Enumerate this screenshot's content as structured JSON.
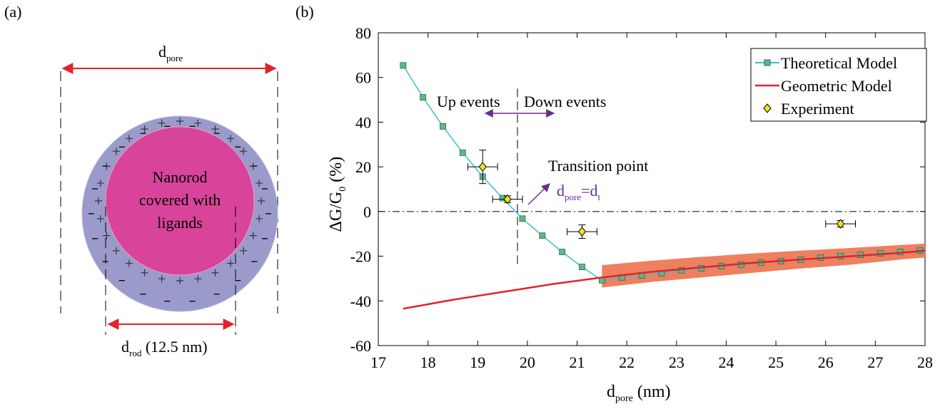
{
  "panel_a": {
    "label": "(a)",
    "pore_label": [
      "d",
      "pore"
    ],
    "rod_text": [
      "Nanorod",
      "covered with",
      "ligands"
    ],
    "rod_label": [
      "d",
      "rod",
      " (12.5 nm)"
    ]
  },
  "chart_data": {
    "type": "line",
    "panel_label": "(b)",
    "x_label": [
      "d",
      "pore",
      " (nm)"
    ],
    "y_label": [
      "ΔG/G",
      "0",
      " (%)"
    ],
    "xlim": [
      17,
      28
    ],
    "xticks": [
      17,
      18,
      19,
      20,
      21,
      22,
      23,
      24,
      25,
      26,
      27,
      28
    ],
    "ylim": [
      -60,
      80
    ],
    "yticks": [
      -60,
      -40,
      -20,
      0,
      20,
      40,
      60,
      80
    ],
    "legend": "upper right",
    "series": [
      {
        "name": "Theoretical Model",
        "color": "#3cbfd0",
        "marker_color": "#5cb88a",
        "x": [
          17.5,
          17.9,
          18.3,
          18.7,
          19.1,
          19.5,
          19.9,
          20.3,
          20.7,
          21.1,
          21.5,
          21.9,
          22.3,
          22.7,
          23.1,
          23.5,
          23.9,
          24.3,
          24.7,
          25.1,
          25.5,
          25.9,
          26.3,
          26.7,
          27.1,
          27.5,
          27.9
        ],
        "values": [
          65.4,
          51.1,
          38.1,
          26.3,
          15.6,
          6.0,
          -3.2,
          -10.8,
          -18.1,
          -24.8,
          -30.8,
          -29.5,
          -28.6,
          -27.6,
          -26.3,
          -25.4,
          -24.4,
          -23.8,
          -22.9,
          -22.2,
          -21.6,
          -20.6,
          -20,
          -19.4,
          -18.7,
          -18.1,
          -17.5
        ]
      },
      {
        "name": "Geometric Model",
        "color": "#e3222a",
        "x": [
          17.5,
          18.5,
          19.5,
          20.5,
          21.5,
          22.5,
          23.5,
          24.5,
          25.5,
          26.5,
          27.5,
          28
        ],
        "values": [
          -43.5,
          -39.5,
          -36,
          -32.5,
          -29.5,
          -27,
          -25,
          -23,
          -21.5,
          -20,
          -18.5,
          -17.5
        ]
      },
      {
        "name": "Experiment",
        "color": "#f2e21b",
        "x": [
          19.1,
          19.6,
          21.1,
          26.3
        ],
        "values": [
          20,
          5.5,
          -9,
          -5.5
        ],
        "x_err": [
          0.3,
          0.3,
          0.3,
          0.3
        ],
        "y_err": [
          7.5,
          1.5,
          3,
          1.5
        ]
      }
    ],
    "band": {
      "color": "#ee8060",
      "x": [
        21.5,
        22.5,
        23.5,
        24.5,
        25.5,
        26.5,
        27.5,
        28
      ],
      "upper": [
        -24,
        -22,
        -20.3,
        -18.8,
        -17.5,
        -16.3,
        -15,
        -14.3
      ],
      "lower": [
        -34,
        -31.5,
        -29.5,
        -27.5,
        -25.5,
        -23.8,
        -21.5,
        -20.6
      ]
    },
    "zero_line": 0,
    "transition_line": {
      "x": 19.8,
      "y": [
        55,
        -24
      ]
    },
    "annotations": {
      "up": "Up events",
      "down": "Down events",
      "transition": "Transition point",
      "formula": [
        "d",
        "pore",
        "=d",
        "t"
      ]
    }
  }
}
